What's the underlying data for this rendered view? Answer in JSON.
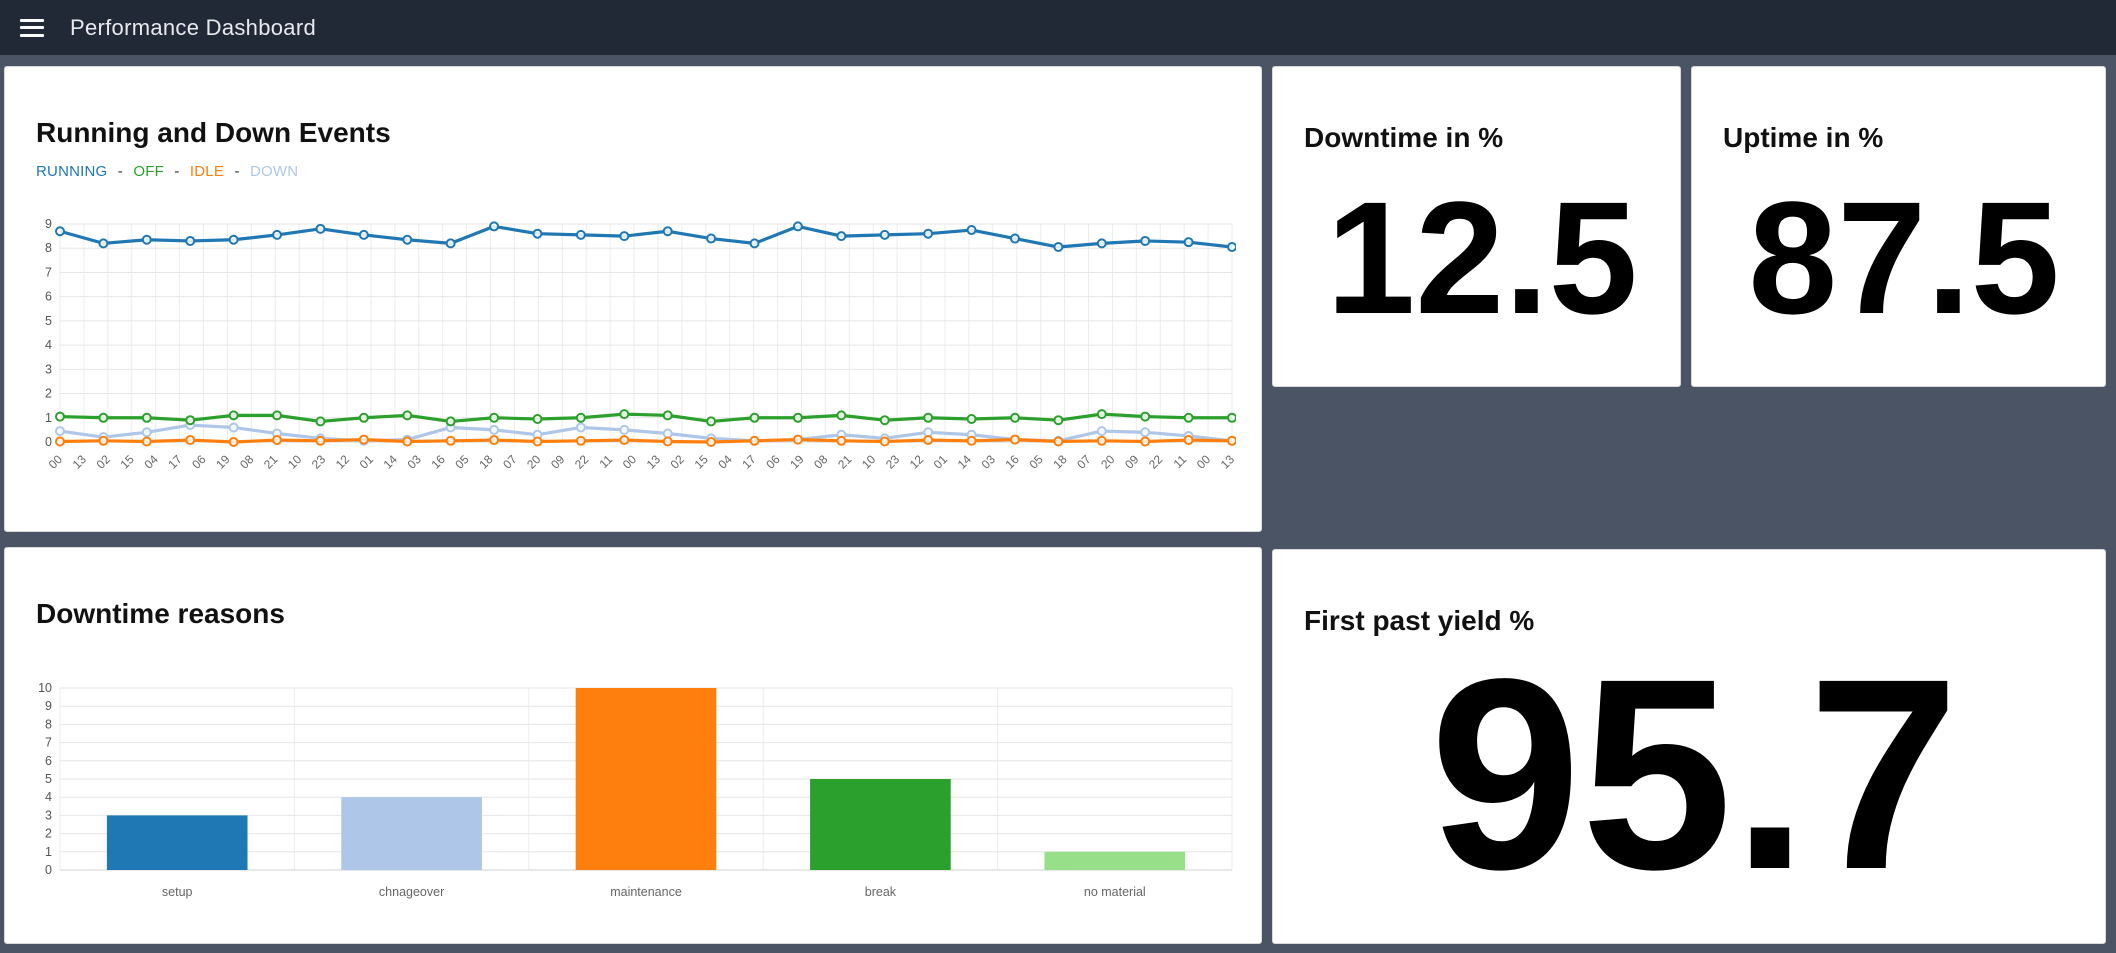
{
  "topbar": {
    "title": "Performance Dashboard",
    "menu_icon": "hamburger-icon"
  },
  "panels": {
    "events": {
      "title": "Running and Down Events",
      "legend_separator": "-"
    },
    "downtime": {
      "title": "Downtime in %",
      "value": "12.5"
    },
    "uptime": {
      "title": "Uptime in %",
      "value": "87.5"
    },
    "reasons": {
      "title": "Downtime reasons"
    },
    "fpy": {
      "title": "First past yield %",
      "value": "95.7"
    }
  },
  "colors": {
    "background": "#4b5465",
    "topbar": "#212936",
    "card": "#ffffff",
    "running": "#1f77b4",
    "off": "#2ca02c",
    "idle": "#ff7f0e",
    "down": "#aec7e8",
    "no_material": "#98df8a",
    "grid": "#e8e8e8",
    "tick_text": "#666666"
  },
  "chart_data": [
    {
      "id": "events",
      "type": "line",
      "title": "Running and Down Events",
      "xlabel": "",
      "ylabel": "",
      "ylim": [
        0,
        9
      ],
      "y_ticks": [
        0,
        1,
        2,
        3,
        4,
        5,
        6,
        7,
        8,
        9
      ],
      "grid": true,
      "legend_position": "top-left",
      "x_tick_labels": [
        "00",
        "13",
        "02",
        "15",
        "04",
        "17",
        "06",
        "19",
        "08",
        "21",
        "10",
        "23",
        "12",
        "01",
        "14",
        "03",
        "16",
        "05",
        "18",
        "07",
        "20",
        "09",
        "22",
        "11",
        "00",
        "13",
        "02",
        "15",
        "04",
        "17",
        "06",
        "19",
        "08",
        "21",
        "10",
        "23",
        "12",
        "01",
        "14",
        "03",
        "16",
        "05",
        "18",
        "07",
        "20",
        "09",
        "22",
        "11",
        "00",
        "13"
      ],
      "series": [
        {
          "name": "RUNNING",
          "color": "#1f77b4",
          "values": [
            8.7,
            8.2,
            8.35,
            8.3,
            8.35,
            8.55,
            8.8,
            8.55,
            8.35,
            8.2,
            8.9,
            8.6,
            8.55,
            8.5,
            8.7,
            8.4,
            8.2,
            8.9,
            8.5,
            8.55,
            8.6,
            8.75,
            8.4,
            8.05,
            8.2,
            8.3,
            8.25,
            8.05
          ]
        },
        {
          "name": "OFF",
          "color": "#2ca02c",
          "values": [
            1.05,
            1.0,
            1.0,
            0.9,
            1.1,
            1.1,
            0.85,
            1.0,
            1.1,
            0.85,
            1.0,
            0.95,
            1.0,
            1.15,
            1.1,
            0.85,
            1.0,
            1.0,
            1.1,
            0.9,
            1.0,
            0.95,
            1.0,
            0.9,
            1.15,
            1.05,
            1.0,
            1.0
          ]
        },
        {
          "name": "IDLE",
          "color": "#ff7f0e",
          "values": [
            0.02,
            0.05,
            0.02,
            0.08,
            0.0,
            0.08,
            0.05,
            0.1,
            0.02,
            0.05,
            0.08,
            0.02,
            0.05,
            0.08,
            0.02,
            0.0,
            0.05,
            0.1,
            0.05,
            0.02,
            0.08,
            0.05,
            0.1,
            0.02,
            0.05,
            0.02,
            0.08,
            0.05
          ]
        },
        {
          "name": "DOWN",
          "color": "#aec7e8",
          "values": [
            0.45,
            0.2,
            0.4,
            0.7,
            0.6,
            0.35,
            0.15,
            0.05,
            0.1,
            0.6,
            0.5,
            0.3,
            0.6,
            0.5,
            0.35,
            0.15,
            0.05,
            0.1,
            0.3,
            0.15,
            0.4,
            0.3,
            0.1,
            0.05,
            0.45,
            0.4,
            0.25,
            0.05
          ]
        }
      ]
    },
    {
      "id": "reasons",
      "type": "bar",
      "title": "Downtime reasons",
      "xlabel": "",
      "ylabel": "",
      "categories": [
        "setup",
        "chnageover",
        "maintenance",
        "break",
        "no material"
      ],
      "values": [
        3,
        4,
        10,
        5,
        1
      ],
      "bar_colors": [
        "#1f77b4",
        "#aec7e8",
        "#ff7f0e",
        "#2ca02c",
        "#98df8a"
      ],
      "ylim": [
        0,
        10
      ],
      "y_ticks": [
        0,
        1,
        2,
        3,
        4,
        5,
        6,
        7,
        8,
        9,
        10
      ],
      "grid": true
    }
  ]
}
